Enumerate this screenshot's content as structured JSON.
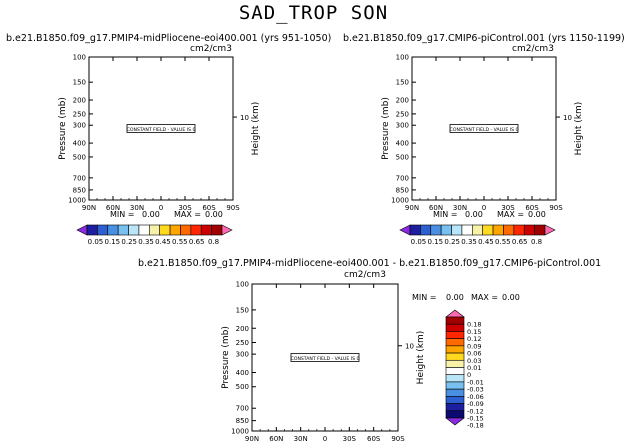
{
  "page_title": "SAD_TROP SON",
  "chart_data": [
    {
      "type": "heatmap",
      "title": "b.e21.B1850.f09_g17.PMIP4-midPliocene-eoi400.001  (yrs 951-1050)",
      "units": "cm2/cm3",
      "xlabel": "",
      "ylabel": "Pressure (mb)",
      "y2label": "Height (km)",
      "x_ticks": [
        "90N",
        "60N",
        "30N",
        "0",
        "30S",
        "60S",
        "90S"
      ],
      "y_ticks": [
        100,
        150,
        200,
        250,
        300,
        400,
        500,
        700,
        850,
        1000
      ],
      "y2_ticks": [
        10
      ],
      "ylim": [
        1000,
        100
      ],
      "constant_label": "CONSTANT FIELD - VALUE IS 0",
      "min_label": "MIN =",
      "min_value": "0.00",
      "max_label": "MAX =",
      "max_value": "0.00",
      "colorbar": {
        "orientation": "horizontal",
        "labels": [
          "0.05",
          "0.15",
          "0.25",
          "0.35",
          "0.45",
          "0.55",
          "0.65",
          "0.8"
        ],
        "colors": [
          "#8a2be2",
          "#1e1ea0",
          "#2d5fd0",
          "#4a90e2",
          "#78c0f0",
          "#b8e6f8",
          "#ffffff",
          "#f8f2a8",
          "#ffd820",
          "#ffa500",
          "#ff6a00",
          "#ff2600",
          "#cc0000",
          "#a00000",
          "#ff69b4"
        ]
      }
    },
    {
      "type": "heatmap",
      "title": "b.e21.B1850.f09_g17.CMIP6-piControl.001  (yrs 1150-1199)",
      "units": "cm2/cm3",
      "xlabel": "",
      "ylabel": "Pressure (mb)",
      "y2label": "Height (km)",
      "x_ticks": [
        "90N",
        "60N",
        "30N",
        "0",
        "30S",
        "60S",
        "90S"
      ],
      "y_ticks": [
        100,
        150,
        200,
        250,
        300,
        400,
        500,
        700,
        850,
        1000
      ],
      "y2_ticks": [
        10
      ],
      "ylim": [
        1000,
        100
      ],
      "constant_label": "CONSTANT FIELD - VALUE IS 0",
      "min_label": "MIN =",
      "min_value": "0.00",
      "max_label": "MAX =",
      "max_value": "0.00",
      "colorbar": {
        "orientation": "horizontal",
        "labels": [
          "0.05",
          "0.15",
          "0.25",
          "0.35",
          "0.45",
          "0.55",
          "0.65",
          "0.8"
        ],
        "colors": [
          "#8a2be2",
          "#1e1ea0",
          "#2d5fd0",
          "#4a90e2",
          "#78c0f0",
          "#b8e6f8",
          "#ffffff",
          "#f8f2a8",
          "#ffd820",
          "#ffa500",
          "#ff6a00",
          "#ff2600",
          "#cc0000",
          "#a00000",
          "#ff69b4"
        ]
      }
    },
    {
      "type": "heatmap",
      "title": "b.e21.B1850.f09_g17.PMIP4-midPliocene-eoi400.001  - b.e21.B1850.f09_g17.CMIP6-piControl.001",
      "units": "cm2/cm3",
      "xlabel": "",
      "ylabel": "Pressure (mb)",
      "y2label": "Height (km)",
      "x_ticks": [
        "90N",
        "60N",
        "30N",
        "0",
        "30S",
        "60S",
        "90S"
      ],
      "y_ticks": [
        100,
        150,
        200,
        250,
        300,
        400,
        500,
        700,
        850,
        1000
      ],
      "y2_ticks": [
        10
      ],
      "ylim": [
        1000,
        100
      ],
      "constant_label": "CONSTANT FIELD - VALUE IS 0",
      "min_label": "MIN =",
      "min_value": "0.00",
      "max_label": "MAX =",
      "max_value": "0.00",
      "colorbar": {
        "orientation": "vertical",
        "labels": [
          "0.18",
          "0.15",
          "0.12",
          "0.09",
          "0.06",
          "0.03",
          "0.01",
          "0",
          "-0.01",
          "-0.03",
          "-0.06",
          "-0.09",
          "-0.12",
          "-0.15",
          "-0.18"
        ],
        "colors": [
          "#ff69b4",
          "#a00000",
          "#cc0000",
          "#ff2600",
          "#ff6a00",
          "#ffa500",
          "#ffd820",
          "#f8f2a8",
          "#ffffff",
          "#b8e6f8",
          "#78c0f0",
          "#4a90e2",
          "#2d5fd0",
          "#1e1ea0",
          "#0a0a70",
          "#8a2be2"
        ]
      }
    }
  ]
}
